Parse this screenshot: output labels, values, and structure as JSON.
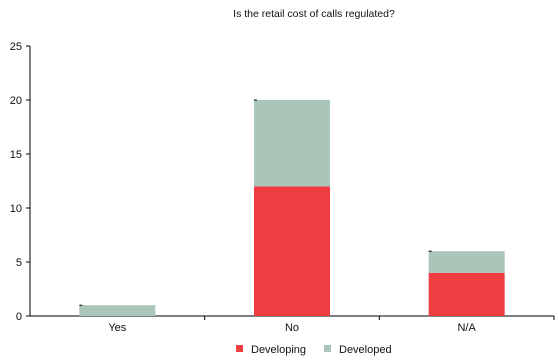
{
  "chart_data": {
    "type": "bar",
    "stacked": true,
    "title": "Is the retail cost of calls regulated?",
    "categories": [
      "Yes",
      "No",
      "N/A"
    ],
    "series": [
      {
        "name": "Developing",
        "values": [
          0,
          12,
          4
        ],
        "color": "#ee3e42"
      },
      {
        "name": "Developed",
        "values": [
          1,
          8,
          2
        ],
        "color": "#a9c6b9"
      }
    ],
    "ylim": [
      0,
      25
    ],
    "yticks": [
      "0",
      "5",
      "10",
      "15",
      "20",
      "25"
    ],
    "grid": false,
    "legend_position": "bottom"
  }
}
